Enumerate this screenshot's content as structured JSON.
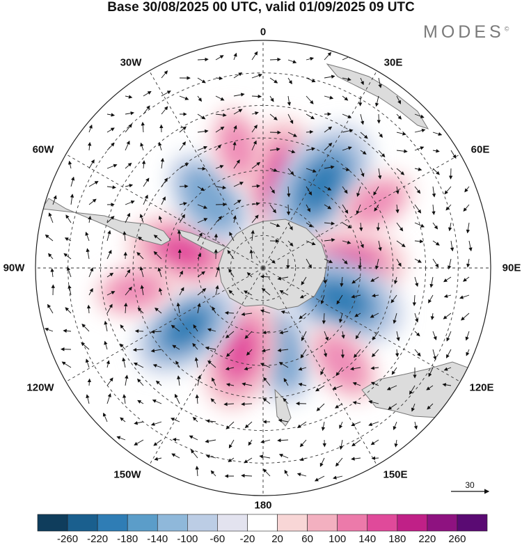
{
  "title": "Base 30/08/2025 00 UTC, valid 01/09/2025 09 UTC",
  "logo": "MODES",
  "logo_mark": "©",
  "longitude_labels": {
    "lon_0": "0",
    "lon_30e": "30E",
    "lon_60e": "60E",
    "lon_90e": "90E",
    "lon_120e": "120E",
    "lon_150e": "150E",
    "lon_180": "180",
    "lon_150w": "150W",
    "lon_120w": "120W",
    "lon_90w": "90W",
    "lon_60w": "60W",
    "lon_30w": "30W"
  },
  "reference_vector": "30",
  "colorbar": {
    "colors": [
      "#0f3d5c",
      "#1a5f8e",
      "#2f7db5",
      "#5b9dc9",
      "#8fb8da",
      "#bccde5",
      "#e3e3ef",
      "#ffffff",
      "#f8d6d6",
      "#f3b0c0",
      "#ec7aaa",
      "#e04a9a",
      "#c02087",
      "#8e1280",
      "#5a0a73"
    ],
    "labels": [
      "-260",
      "-220",
      "-180",
      "-140",
      "-100",
      "-60",
      "-20",
      "20",
      "60",
      "100",
      "140",
      "180",
      "220",
      "260"
    ]
  },
  "anomaly_palette": {
    "strong_pos": "#e24b9c",
    "mid_pos": "#ef8db8",
    "weak_pos": "#f7c9cf",
    "strong_neg": "#2f7db5",
    "mid_neg": "#7aa8d2",
    "weak_neg": "#c9d3e8",
    "land": "#dcdcdc"
  },
  "anomalies": [
    {
      "lon": 10,
      "colat": 28,
      "value": 180
    },
    {
      "lon": 35,
      "colat": 31,
      "value": -230
    },
    {
      "lon": 88,
      "colat": 26,
      "value": 170
    },
    {
      "lon": 112,
      "colat": 26,
      "value": -210
    },
    {
      "lon": 168,
      "colat": 27,
      "value": -120
    },
    {
      "lon": -165,
      "colat": 27,
      "value": 170
    },
    {
      "lon": -128,
      "colat": 30,
      "value": -170
    },
    {
      "lon": -78,
      "colat": 25,
      "value": 160
    },
    {
      "lon": -38,
      "colat": 27,
      "value": -130
    },
    {
      "lon": -12,
      "colat": 38,
      "value": 60
    },
    {
      "lon": 60,
      "colat": 40,
      "value": 60
    },
    {
      "lon": 140,
      "colat": 38,
      "value": 80
    },
    {
      "lon": -100,
      "colat": 40,
      "value": 60
    }
  ]
}
